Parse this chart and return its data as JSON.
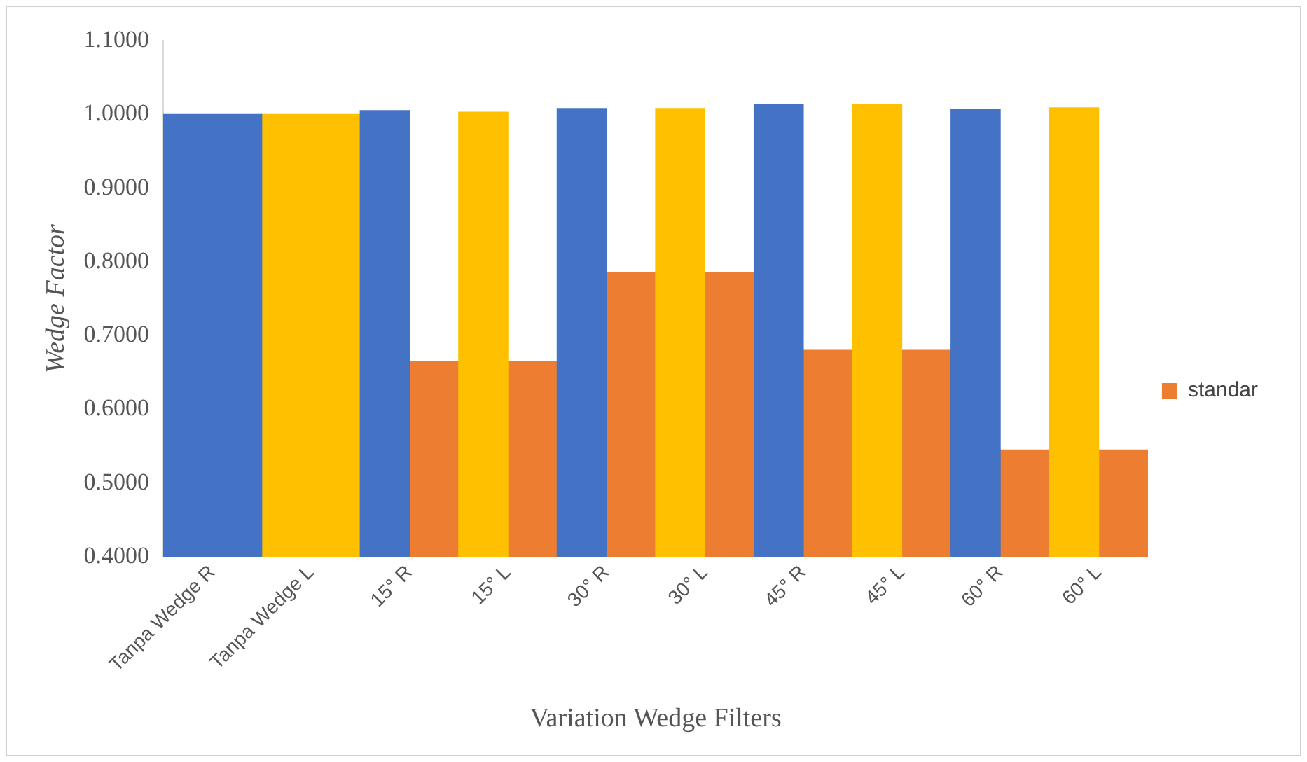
{
  "chart_data": {
    "type": "bar",
    "xlabel": "Variation Wedge Filters",
    "ylabel": "Wedge Factor",
    "categories": [
      "Tanpa Wedge R",
      "Tanpa Wedge L",
      "15° R",
      "15° L",
      "30° R",
      "30° L",
      "45° R",
      "45° L",
      "60° R",
      "60° L"
    ],
    "series": [
      {
        "color": "#4472c4",
        "values": [
          1.0,
          null,
          1.005,
          null,
          1.008,
          null,
          1.013,
          null,
          1.007,
          null
        ]
      },
      {
        "color": "#ffc000",
        "values": [
          null,
          1.0,
          null,
          1.003,
          null,
          1.008,
          null,
          1.013,
          null,
          1.009
        ]
      },
      {
        "name": "standar",
        "color": "#ed7d31",
        "values": [
          null,
          null,
          0.665,
          0.665,
          0.785,
          0.785,
          0.68,
          0.68,
          0.545,
          0.545
        ]
      }
    ],
    "ylim": [
      0.4,
      1.1
    ],
    "yticks": [
      {
        "value": 0.4,
        "label": "0.4000"
      },
      {
        "value": 0.5,
        "label": "0.5000"
      },
      {
        "value": 0.6,
        "label": "0.6000"
      },
      {
        "value": 0.7,
        "label": "0.7000"
      },
      {
        "value": 0.8,
        "label": "0.8000"
      },
      {
        "value": 0.9,
        "label": "0.9000"
      },
      {
        "value": 1.0,
        "label": "1.0000"
      },
      {
        "value": 1.1,
        "label": "1.1000"
      }
    ],
    "grid": false,
    "legend": "right"
  }
}
